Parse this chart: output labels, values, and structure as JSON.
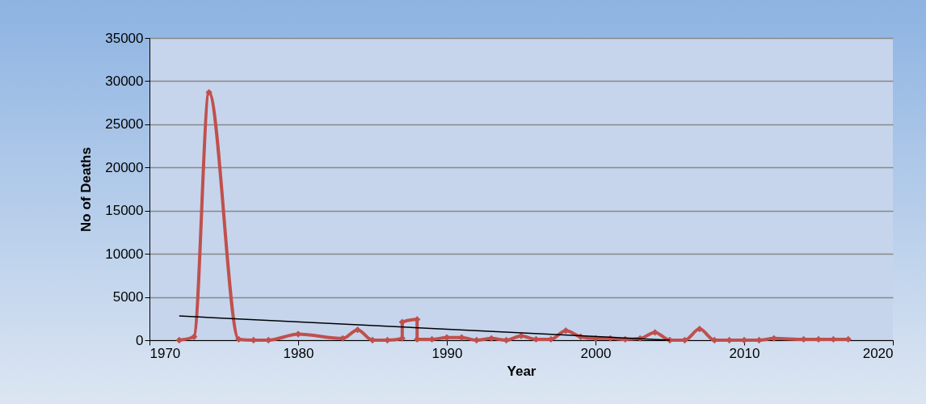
{
  "chart_data": {
    "type": "line",
    "xlabel": "Year",
    "ylabel": "No of Deaths",
    "xlim": [
      1970,
      2020
    ],
    "xticks": [
      1970,
      1980,
      1990,
      2000,
      2010,
      2020
    ],
    "ylim": [
      0,
      35000
    ],
    "yticks": [
      0,
      5000,
      10000,
      15000,
      20000,
      25000,
      30000,
      35000
    ],
    "grid": "y",
    "series": [
      {
        "color": "#c0504d",
        "marker": "diamond",
        "x": [
          1972,
          1973,
          1974,
          1976,
          1977,
          1978,
          1980,
          1983,
          1984,
          1985,
          1986,
          1987,
          1987,
          1988,
          1988,
          1989,
          1990,
          1991,
          1992,
          1993,
          1994,
          1995,
          1996,
          1997,
          1998,
          1999,
          2000,
          2001,
          2002,
          2003,
          2004,
          2005,
          2006,
          2007,
          2008,
          2009,
          2010,
          2011,
          2012,
          2014,
          2015,
          2016,
          2017
        ],
        "values": [
          0,
          400,
          28700,
          100,
          0,
          0,
          700,
          200,
          1200,
          0,
          0,
          200,
          2100,
          2400,
          100,
          100,
          300,
          300,
          0,
          200,
          0,
          500,
          100,
          100,
          1100,
          400,
          200,
          200,
          100,
          200,
          900,
          0,
          0,
          1300,
          0,
          0,
          0,
          0,
          200,
          100,
          100,
          100,
          100
        ]
      },
      {
        "type": "line",
        "color": "#000000",
        "marker": "none",
        "x": [
          1972,
          2005
        ],
        "values": [
          2800,
          0
        ]
      }
    ]
  }
}
